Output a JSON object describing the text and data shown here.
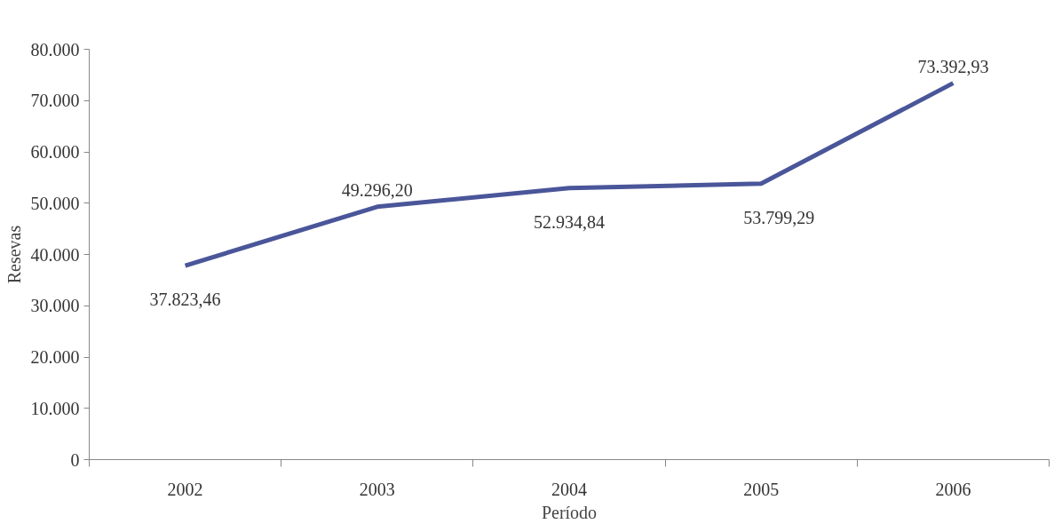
{
  "chart_data": {
    "type": "line",
    "xlabel": "Período",
    "ylabel": "Resevas",
    "categories": [
      "2002",
      "2003",
      "2004",
      "2005",
      "2006"
    ],
    "series": [
      {
        "color": "#4a5699",
        "values": [
          37823.46,
          49296.2,
          52934.84,
          53799.29,
          73392.93
        ],
        "value_labels": [
          "37.823,46",
          "49.296,20",
          "52.934,84",
          "53.799,29",
          "73.392,93"
        ]
      }
    ],
    "ylim": [
      0,
      80000
    ],
    "yticks": [
      0,
      {
        "value": 10000,
        "label": "10.000"
      },
      {
        "value": 20000,
        "label": "20.000"
      },
      {
        "value": 30000,
        "label": "30.000"
      },
      {
        "value": 40000,
        "label": "40.000"
      },
      {
        "value": 50000,
        "label": "50.000"
      },
      {
        "value": 60000,
        "label": "60.000"
      },
      {
        "value": 70000,
        "label": "70.000"
      },
      {
        "value": 80000,
        "label": "80.000"
      }
    ],
    "grid": false,
    "marker": "none",
    "line_style": "solid"
  }
}
